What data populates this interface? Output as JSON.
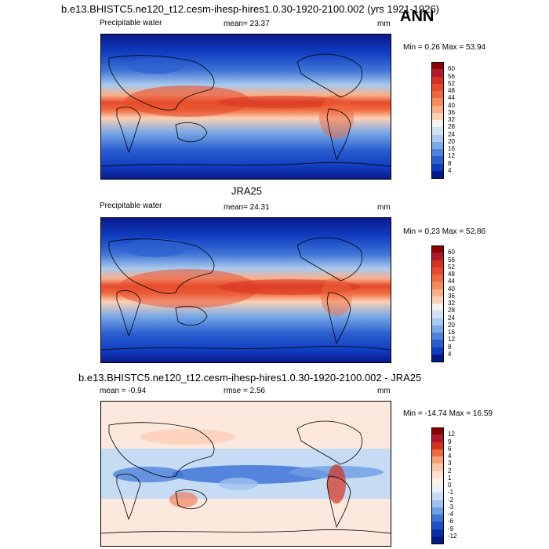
{
  "header": {
    "case_title": "b.e13.BHISTC5.ne120_t12.cesm-ihesp-hires1.0.30-1920-2100.002 (yrs 1921-1926)",
    "season": "ANN"
  },
  "panels": [
    {
      "id": "model",
      "variable": "Precipitable water",
      "stat_left": "mean=  23.37",
      "stat_right": "",
      "units": "mm",
      "minmax": "Min =   0.26 Max =  53.94",
      "title": "",
      "colorbar_labels": [
        "60",
        "56",
        "52",
        "48",
        "44",
        "40",
        "36",
        "32",
        "28",
        "24",
        "20",
        "16",
        "12",
        "8",
        "4"
      ],
      "colorbar_colors": [
        "#8b0000",
        "#b2182b",
        "#d6301e",
        "#e64b2c",
        "#f0683d",
        "#f58b58",
        "#f9b08a",
        "#fbd0b4",
        "#f5f1ee",
        "#d2e2f3",
        "#a9c9ee",
        "#7aa9e6",
        "#4f84da",
        "#2b5fd0",
        "#0f3cc0",
        "#001a8c"
      ]
    },
    {
      "id": "obs",
      "variable": "Precipitable water",
      "stat_left": "mean=  24.31",
      "stat_right": "",
      "units": "mm",
      "minmax": "Min =   0.23 Max =  52.86",
      "title": "JRA25",
      "colorbar_labels": [
        "60",
        "56",
        "52",
        "48",
        "44",
        "40",
        "36",
        "32",
        "28",
        "24",
        "20",
        "16",
        "12",
        "8",
        "4"
      ],
      "colorbar_colors": [
        "#8b0000",
        "#b2182b",
        "#d6301e",
        "#e64b2c",
        "#f0683d",
        "#f58b58",
        "#f9b08a",
        "#fbd0b4",
        "#f5f1ee",
        "#d2e2f3",
        "#a9c9ee",
        "#7aa9e6",
        "#4f84da",
        "#2b5fd0",
        "#0f3cc0",
        "#001a8c"
      ]
    },
    {
      "id": "diff",
      "variable": "",
      "stat_left": "mean =  -0.94",
      "stat_right": "rmse =   2.56",
      "units": "mm",
      "minmax": "Min = -14.74 Max =  16.59",
      "title": "b.e13.BHISTC5.ne120_t12.cesm-ihesp-hires1.0.30-1920-2100.002 - JRA25",
      "colorbar_labels": [
        "12",
        "9",
        "6",
        "4",
        "3",
        "2",
        "1",
        "0",
        "-1",
        "-2",
        "-3",
        "-4",
        "-6",
        "-9",
        "-12"
      ],
      "colorbar_colors": [
        "#8b0000",
        "#b2182b",
        "#d6301e",
        "#f0683d",
        "#f9a07a",
        "#fbc6a8",
        "#fde2d2",
        "#fdf0e8",
        "#e8f1fb",
        "#c6dcf4",
        "#9ec2ee",
        "#6f9fe4",
        "#3f74d6",
        "#1f4fc6",
        "#0a2fae",
        "#001a8c"
      ]
    }
  ],
  "chart_data": [
    {
      "type": "heatmap",
      "title": "Precipitable water",
      "units": "mm",
      "mean": 23.37,
      "min": 0.26,
      "max": 53.94,
      "levels": [
        4,
        8,
        12,
        16,
        20,
        24,
        28,
        32,
        36,
        40,
        44,
        48,
        52,
        56,
        60
      ],
      "grid": false
    },
    {
      "type": "heatmap",
      "title": "JRA25",
      "units": "mm",
      "mean": 24.31,
      "min": 0.23,
      "max": 52.86,
      "levels": [
        4,
        8,
        12,
        16,
        20,
        24,
        28,
        32,
        36,
        40,
        44,
        48,
        52,
        56,
        60
      ],
      "grid": false
    },
    {
      "type": "heatmap",
      "title": "b.e13.BHISTC5.ne120_t12.cesm-ihesp-hires1.0.30-1920-2100.002 - JRA25",
      "units": "mm",
      "mean": -0.94,
      "rmse": 2.56,
      "min": -14.74,
      "max": 16.59,
      "levels": [
        -12,
        -9,
        -6,
        -4,
        -3,
        -2,
        -1,
        0,
        1,
        2,
        3,
        4,
        6,
        9,
        12
      ],
      "grid": false
    }
  ]
}
